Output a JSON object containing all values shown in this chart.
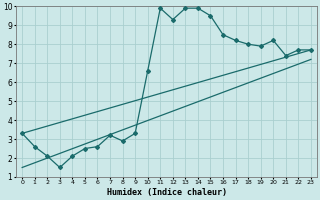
{
  "xlabel": "Humidex (Indice chaleur)",
  "ylabel": "",
  "bg_color": "#cce8e8",
  "grid_color": "#aacfcf",
  "line_color": "#1a6b6b",
  "xlim": [
    -0.5,
    23.5
  ],
  "ylim": [
    1,
    10
  ],
  "yticks": [
    1,
    2,
    3,
    4,
    5,
    6,
    7,
    8,
    9,
    10
  ],
  "xticks": [
    0,
    1,
    2,
    3,
    4,
    5,
    6,
    7,
    8,
    9,
    10,
    11,
    12,
    13,
    14,
    15,
    16,
    17,
    18,
    19,
    20,
    21,
    22,
    23
  ],
  "line1_x": [
    0,
    1,
    2,
    3,
    4,
    5,
    6,
    7,
    8,
    9,
    10,
    11,
    12,
    13,
    14,
    15,
    16,
    17,
    18,
    19,
    20,
    21,
    22,
    23
  ],
  "line1_y": [
    3.3,
    2.6,
    2.1,
    1.5,
    2.1,
    2.5,
    2.6,
    3.2,
    2.9,
    3.3,
    6.6,
    9.9,
    9.3,
    9.9,
    9.9,
    9.5,
    8.5,
    8.2,
    8.0,
    7.9,
    8.2,
    7.4,
    7.7,
    7.7
  ],
  "line2_x": [
    0,
    23
  ],
  "line2_y": [
    3.3,
    7.7
  ],
  "line3_x": [
    0,
    23
  ],
  "line3_y": [
    1.5,
    7.2
  ],
  "marker": "D",
  "markersize": 2.0,
  "linewidth": 0.9
}
